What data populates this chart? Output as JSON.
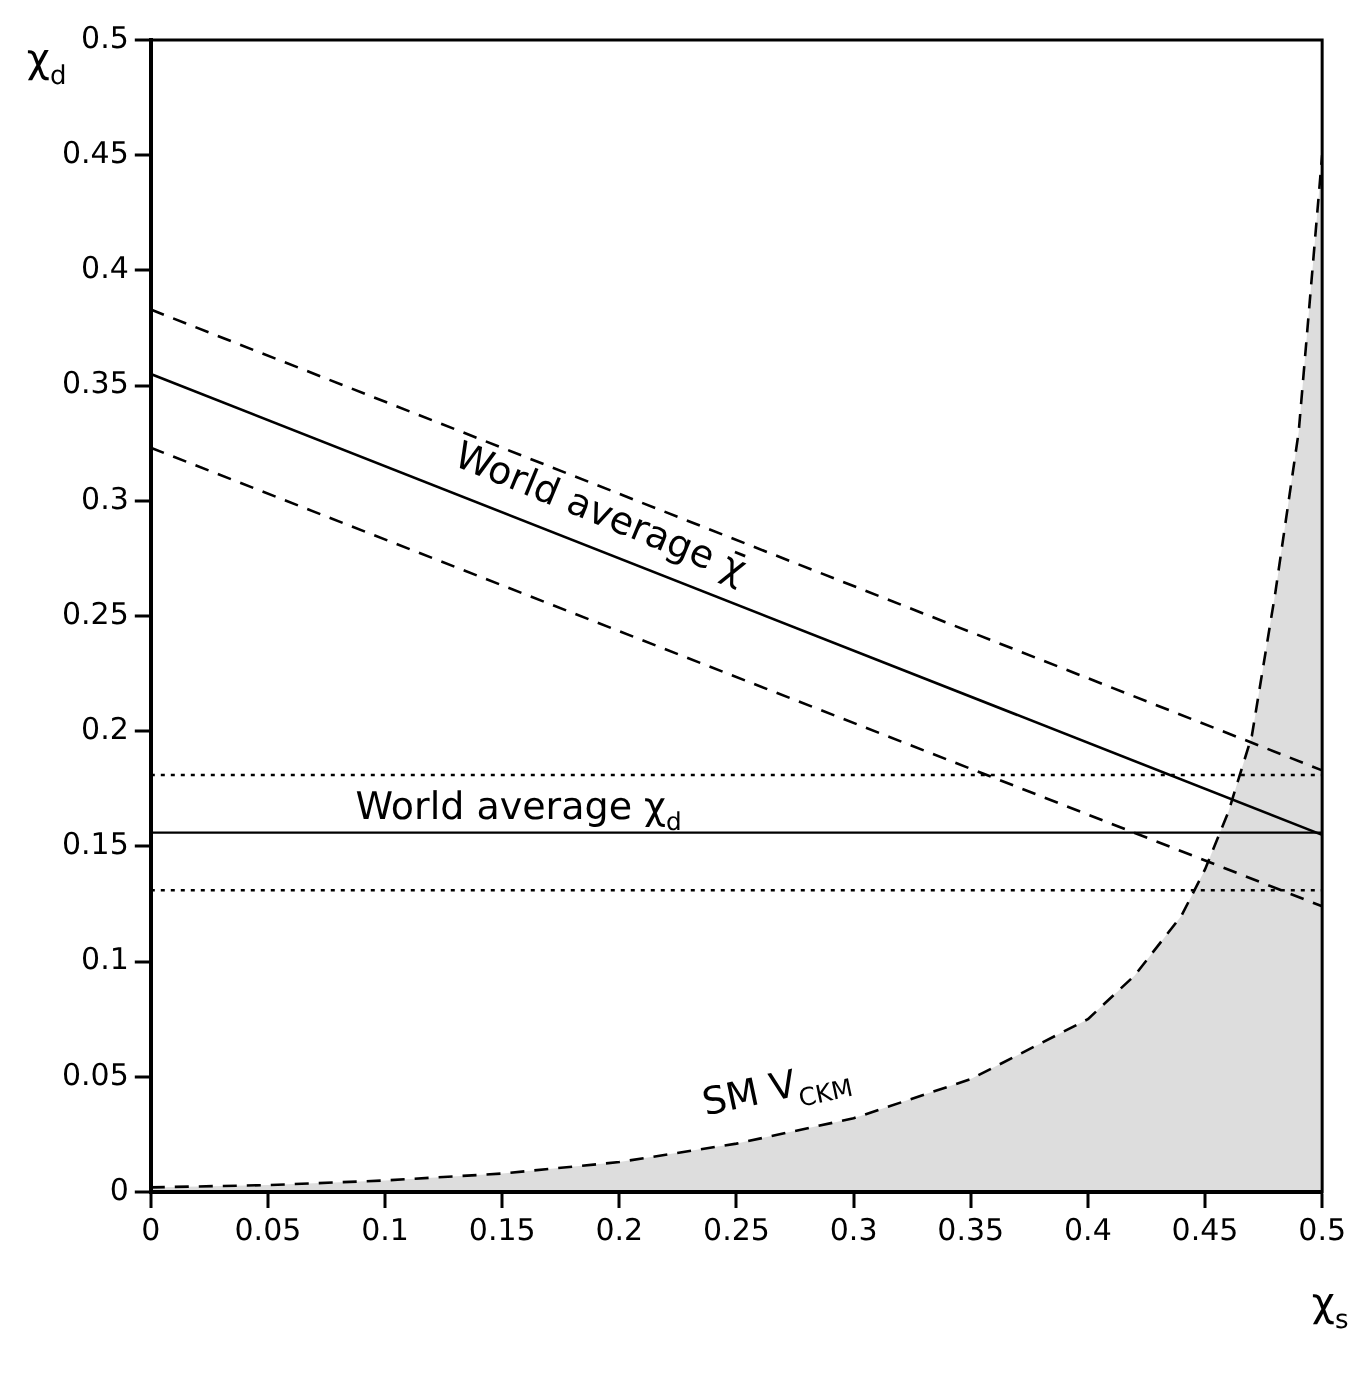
{
  "chart_data": {
    "type": "line",
    "xlabel": "χ$_{s}$",
    "ylabel": "χ$_{d}$",
    "xlim": [
      0,
      0.5
    ],
    "ylim": [
      0,
      0.5
    ],
    "xticks": [
      0,
      0.05,
      0.1,
      0.15,
      0.2,
      0.25,
      0.3,
      0.35,
      0.4,
      0.45,
      0.5
    ],
    "yticks": [
      0,
      0.05,
      0.1,
      0.15,
      0.2,
      0.25,
      0.3,
      0.35,
      0.4,
      0.45,
      0.5
    ],
    "grid": false,
    "legend": false,
    "marker": "none",
    "series": [
      {
        "color": "#000000",
        "line_style": "solid",
        "x": [
          0,
          0.5
        ],
        "values": [
          0.355,
          0.155
        ]
      },
      {
        "color": "#000000",
        "line_style": "dashed",
        "x": [
          0,
          0.5
        ],
        "values": [
          0.383,
          0.183
        ]
      },
      {
        "color": "#000000",
        "line_style": "dashed",
        "x": [
          0,
          0.5
        ],
        "values": [
          0.323,
          0.124
        ]
      },
      {
        "type": "area",
        "color": "#000000",
        "line_style": "dashed",
        "x": [
          0,
          0.05,
          0.1,
          0.15,
          0.2,
          0.25,
          0.3,
          0.35,
          0.4,
          0.42,
          0.44,
          0.45,
          0.46,
          0.47,
          0.48,
          0.49,
          0.5
        ],
        "values": [
          0.002,
          0.003,
          0.005,
          0.008,
          0.013,
          0.021,
          0.032,
          0.049,
          0.075,
          0.094,
          0.12,
          0.14,
          0.165,
          0.198,
          0.26,
          0.33,
          0.45
        ]
      }
    ],
    "ref_lines": [
      {
        "axis": "y",
        "value": 0.156,
        "line_style": "solid"
      },
      {
        "axis": "y",
        "value": 0.181,
        "line_style": "dotted"
      },
      {
        "axis": "y",
        "value": 0.131,
        "line_style": "dotted"
      }
    ],
    "annotations": [
      "World average χ̄",
      "World average χ$_{d}$",
      "SM V$_{CKM}$"
    ]
  }
}
